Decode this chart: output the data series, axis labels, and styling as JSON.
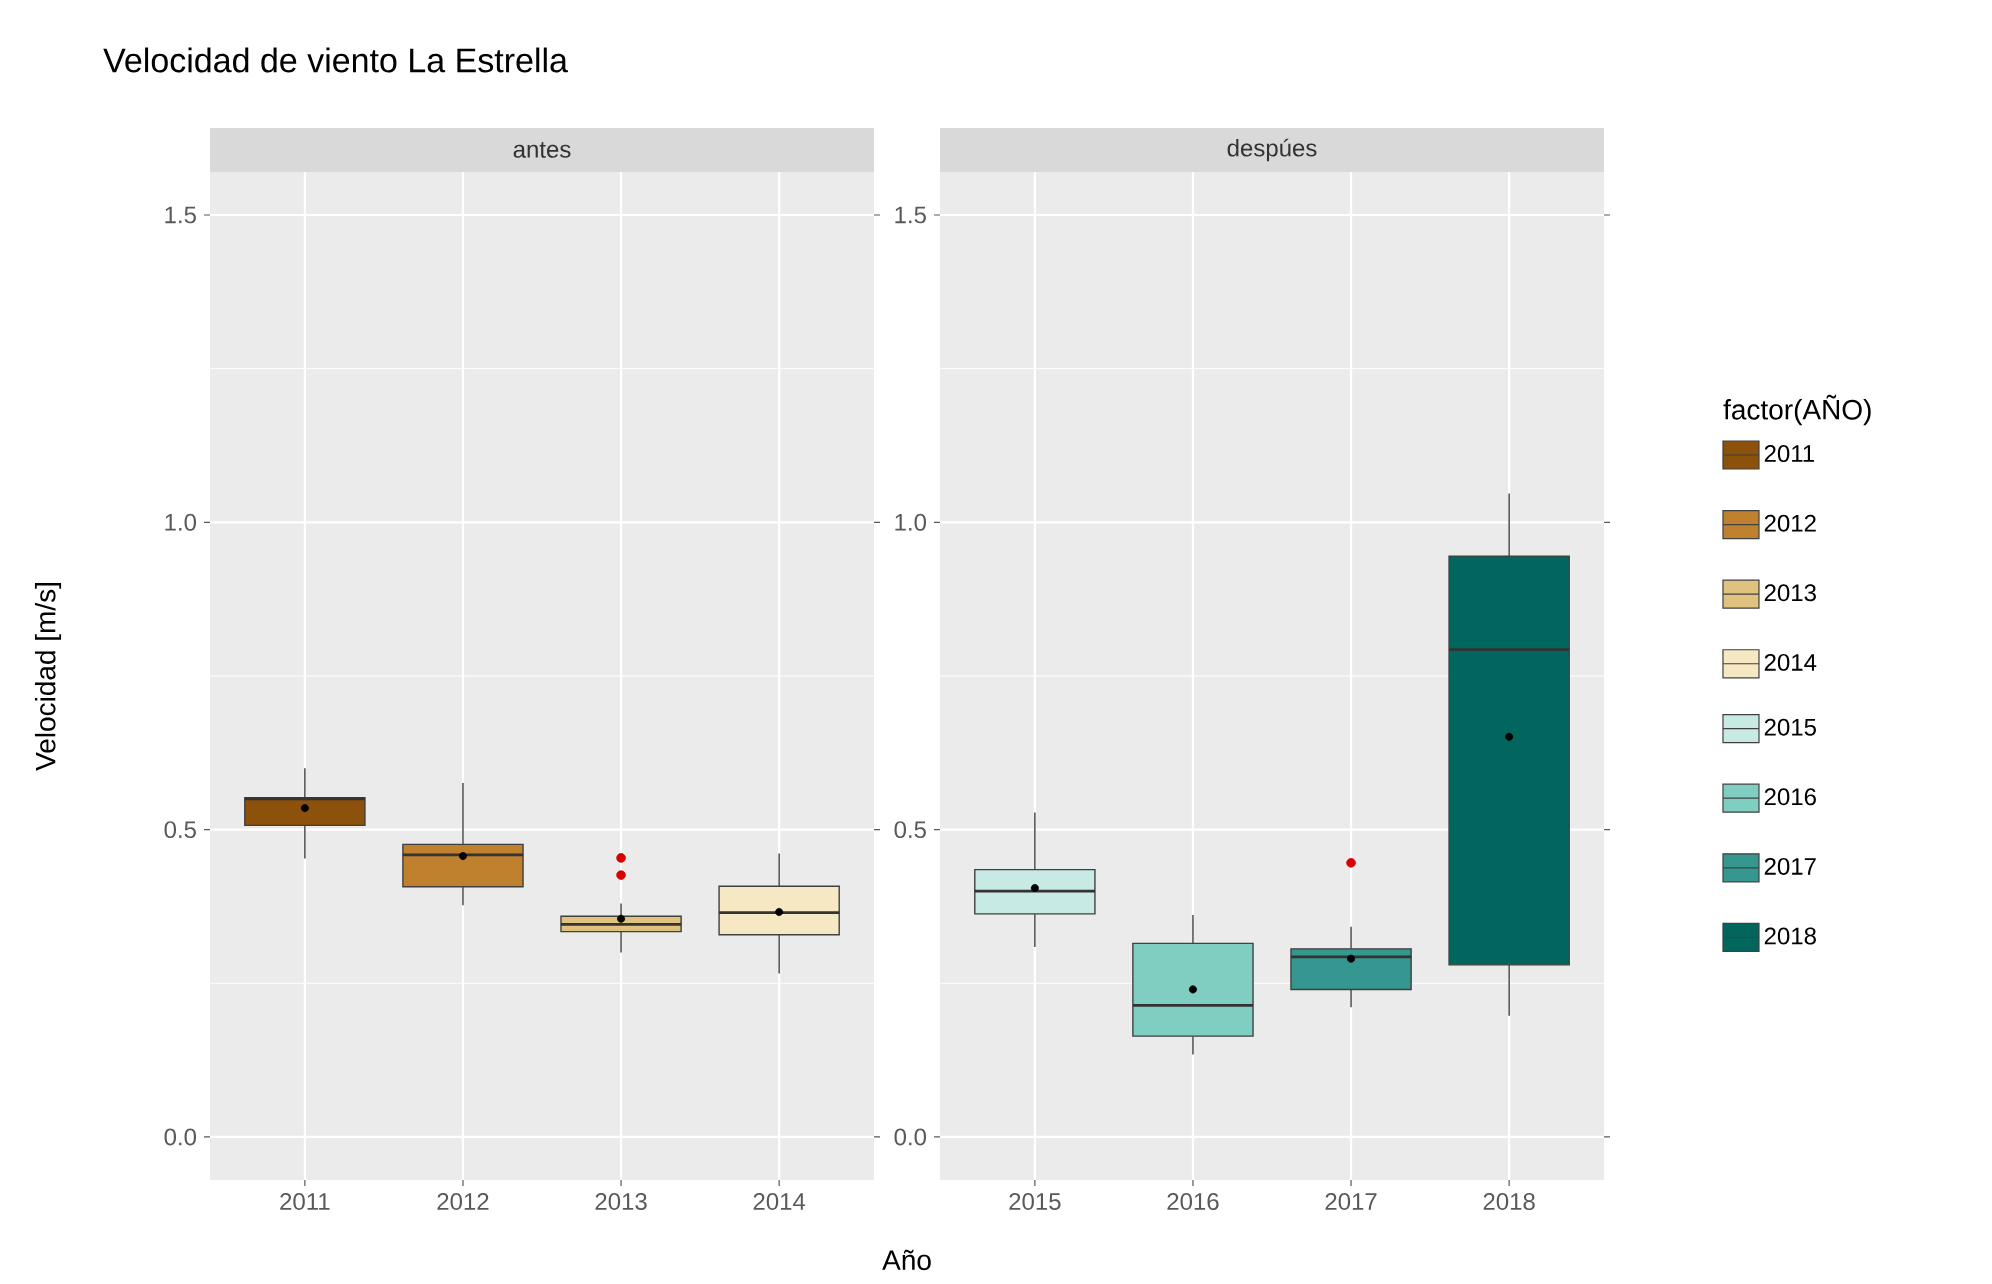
{
  "chart_data": [
    {
      "type": "box",
      "title": "Velocidad de viento La Estrella",
      "subtitle": "antes",
      "ylabel": "Velocidad [m/s]",
      "categories": [
        "2011",
        "2012",
        "2013",
        "2014"
      ],
      "series": [
        {
          "name": "2011",
          "color": "#8c510a",
          "boxes": [
            {
              "low": 0.453,
              "q1": 0.507,
              "median": 0.55,
              "q3": 0.552,
              "high": 0.6,
              "mean": 0.535
            },
            null,
            null,
            null
          ]
        },
        {
          "name": "2012",
          "color": "#bf812d",
          "boxes": [
            null,
            {
              "low": 0.377,
              "q1": 0.407,
              "median": 0.459,
              "q3": 0.476,
              "high": 0.576,
              "mean": 0.457
            },
            null,
            null
          ]
        },
        {
          "name": "2013",
          "color": "#dfc27d",
          "boxes": [
            null,
            null,
            {
              "low": 0.3,
              "q1": 0.334,
              "median": 0.346,
              "q3": 0.359,
              "high": 0.38,
              "mean": 0.355,
              "outliers": [
                0.454,
                0.426
              ]
            },
            null
          ]
        },
        {
          "name": "2014",
          "color": "#f6e8c3",
          "boxes": [
            null,
            null,
            null,
            {
              "low": 0.266,
              "q1": 0.329,
              "median": 0.365,
              "q3": 0.408,
              "high": 0.461,
              "mean": 0.366
            }
          ]
        }
      ],
      "ylim": [
        -0.07,
        1.57
      ],
      "yticks": [
        {
          "value": 0,
          "label": "0.0"
        },
        {
          "value": 0.5,
          "label": "0.5"
        },
        {
          "value": 1,
          "label": "1.0"
        },
        {
          "value": 1.5,
          "label": "1.5"
        }
      ],
      "grid": true,
      "legend": "right"
    },
    {
      "type": "box",
      "subtitle": "despúes",
      "xlabel": "Año",
      "legend_title": "factor(AÑO)",
      "categories": [
        "2015",
        "2016",
        "2017",
        "2018"
      ],
      "series": [
        {
          "name": "2015",
          "color": "#c7eae5",
          "boxes": [
            {
              "low": 0.309,
              "q1": 0.363,
              "median": 0.4,
              "q3": 0.435,
              "high": 0.528,
              "mean": 0.405
            },
            null,
            null,
            null
          ]
        },
        {
          "name": "2016",
          "color": "#80cdc1",
          "boxes": [
            null,
            {
              "low": 0.134,
              "q1": 0.164,
              "median": 0.214,
              "q3": 0.315,
              "high": 0.361,
              "mean": 0.24
            },
            null,
            null
          ]
        },
        {
          "name": "2017",
          "color": "#35978f",
          "boxes": [
            null,
            null,
            {
              "low": 0.211,
              "q1": 0.24,
              "median": 0.293,
              "q3": 0.306,
              "high": 0.342,
              "mean": 0.29,
              "outliers": [
                0.446
              ]
            },
            null
          ]
        },
        {
          "name": "2018",
          "color": "#01665e",
          "boxes": [
            null,
            null,
            null,
            {
              "low": 0.197,
              "q1": 0.28,
              "median": 0.793,
              "q3": 0.945,
              "high": 1.047,
              "mean": 0.651
            }
          ]
        }
      ],
      "ylim": [
        -0.07,
        1.57
      ],
      "yticks": [
        {
          "value": 0,
          "label": "0.0"
        },
        {
          "value": 0.5,
          "label": "0.5"
        },
        {
          "value": 1,
          "label": "1.0"
        },
        {
          "value": 1.5,
          "label": "1.5"
        }
      ],
      "grid": true,
      "legend": "right"
    }
  ]
}
